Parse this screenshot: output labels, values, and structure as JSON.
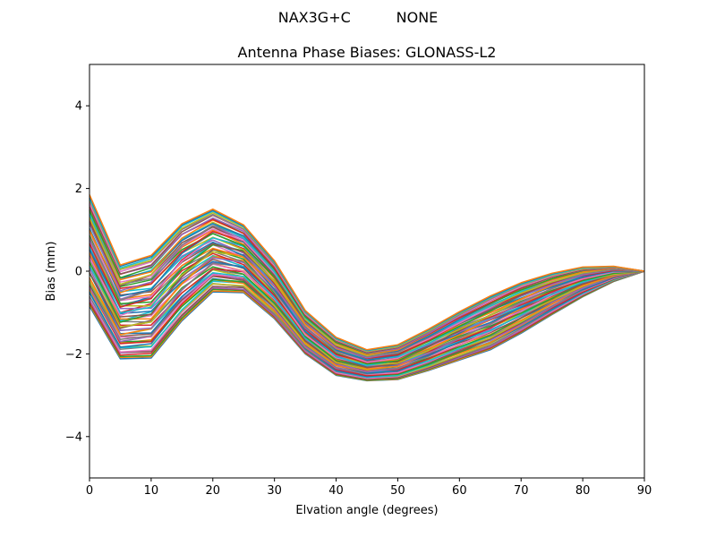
{
  "figure": {
    "suptitle": "NAX3G+C          NONE"
  },
  "chart_data": {
    "type": "line",
    "title": "Antenna Phase Biases: GLONASS-L2",
    "xlabel": "Elvation angle (degrees)",
    "ylabel": "Bias (mm)",
    "xlim": [
      0,
      90
    ],
    "ylim": [
      -5,
      5
    ],
    "xticks": [
      0,
      10,
      20,
      30,
      40,
      50,
      60,
      70,
      80,
      90
    ],
    "yticks": [
      -4,
      -2,
      0,
      2,
      4
    ],
    "grid": false,
    "legend": "none",
    "x": [
      0,
      5,
      10,
      15,
      20,
      25,
      30,
      35,
      40,
      45,
      50,
      55,
      60,
      65,
      70,
      75,
      80,
      85,
      90
    ],
    "series_count": 72,
    "envelope": {
      "upper": [
        1.85,
        0.15,
        0.38,
        1.15,
        1.5,
        1.12,
        0.25,
        -0.95,
        -1.6,
        -1.9,
        -1.78,
        -1.4,
        -0.98,
        -0.6,
        -0.28,
        -0.05,
        0.1,
        0.12,
        0.0
      ],
      "lower": [
        -0.85,
        -2.12,
        -2.1,
        -1.2,
        -0.5,
        -0.52,
        -1.15,
        -2.0,
        -2.52,
        -2.65,
        -2.62,
        -2.4,
        -2.15,
        -1.9,
        -1.5,
        -1.05,
        -0.62,
        -0.25,
        0.0
      ]
    },
    "colors": [
      "#1f77b4",
      "#ff7f0e",
      "#2ca02c",
      "#d62728",
      "#9467bd",
      "#8c564b",
      "#e377c2",
      "#7f7f7f",
      "#bcbd22",
      "#17becf"
    ]
  }
}
